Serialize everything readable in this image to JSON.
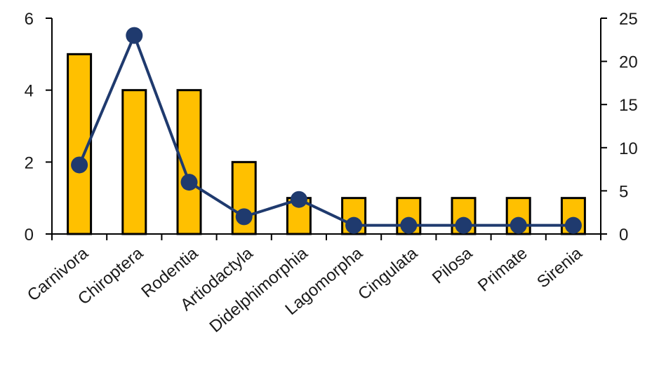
{
  "chart_data": {
    "type": "bar",
    "categories": [
      "Carnivora",
      "Chiroptera",
      "Rodentia",
      "Artiodactyla",
      "Didelphimorphia",
      "Lagomorpha",
      "Cingulata",
      "Pilosa",
      "Primate",
      "Sirenia"
    ],
    "series": [
      {
        "type": "bar",
        "axis": "left",
        "color": "#FFC000",
        "values": [
          5,
          4,
          4,
          2,
          1,
          1,
          1,
          1,
          1,
          1
        ]
      },
      {
        "type": "line",
        "axis": "right",
        "color": "#1F3A6E",
        "values": [
          8,
          23,
          6,
          2,
          4,
          1,
          1,
          1,
          1,
          1
        ]
      }
    ],
    "y_left": {
      "min": 0,
      "max": 6,
      "ticks": [
        0,
        2,
        4,
        6
      ]
    },
    "y_right": {
      "min": 0,
      "max": 25,
      "ticks": [
        0,
        5,
        10,
        15,
        20,
        25
      ]
    },
    "title": "",
    "xlabel": "",
    "ylabel": "",
    "grid": false,
    "legend": "none"
  }
}
